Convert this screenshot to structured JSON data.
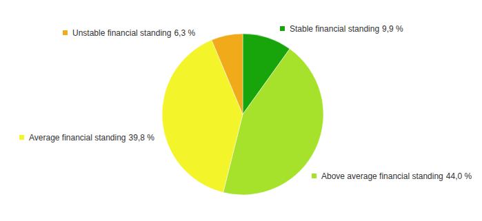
{
  "chart_data": {
    "type": "pie",
    "categories": [
      "Stable financial standing",
      "Above average financial standing",
      "Average financial standing",
      "Unstable financial standing"
    ],
    "values": [
      9.9,
      44.0,
      39.8,
      6.3
    ],
    "value_labels": [
      "9,9 %",
      "44,0 %",
      "39,8 %",
      "6,3 %"
    ],
    "colors": [
      "#18a50c",
      "#a6e22c",
      "#f4f42a",
      "#f0aa1a"
    ],
    "data_labels": true
  }
}
